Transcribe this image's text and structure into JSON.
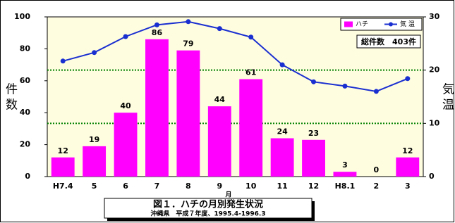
{
  "chart_data": {
    "type": "bar-line",
    "title": "図１．ハチの月別発生状況",
    "subtitle": "沖縄県　平成７年度、1995.4-1996.3",
    "x_label": "月",
    "y_label": "件 数",
    "y2_label": "気 温",
    "annotation": "総件数　403件",
    "categories": [
      "H7.4",
      "5",
      "6",
      "7",
      "8",
      "9",
      "10",
      "11",
      "12",
      "H8.1",
      "2",
      "3"
    ],
    "series": [
      {
        "name": "ハチ",
        "type": "bar",
        "color": "#ff00ff",
        "values": [
          12,
          19,
          40,
          86,
          79,
          44,
          61,
          24,
          23,
          3,
          0,
          12
        ]
      },
      {
        "name": "気 温",
        "type": "line",
        "axis": "y2",
        "color": "#1a2fd0",
        "values": [
          21.7,
          23.3,
          26.3,
          28.5,
          29.1,
          27.8,
          26.2,
          21.0,
          17.8,
          17.0,
          16.0,
          18.4
        ]
      }
    ],
    "ylim": [
      0,
      100
    ],
    "yticks": [
      0,
      20,
      40,
      60,
      80,
      100
    ],
    "y2lim": [
      0,
      30
    ],
    "y2ticks": [
      0,
      10,
      20,
      30
    ],
    "grid": "y2",
    "grid_color": "#008000",
    "legend": "upper right"
  }
}
